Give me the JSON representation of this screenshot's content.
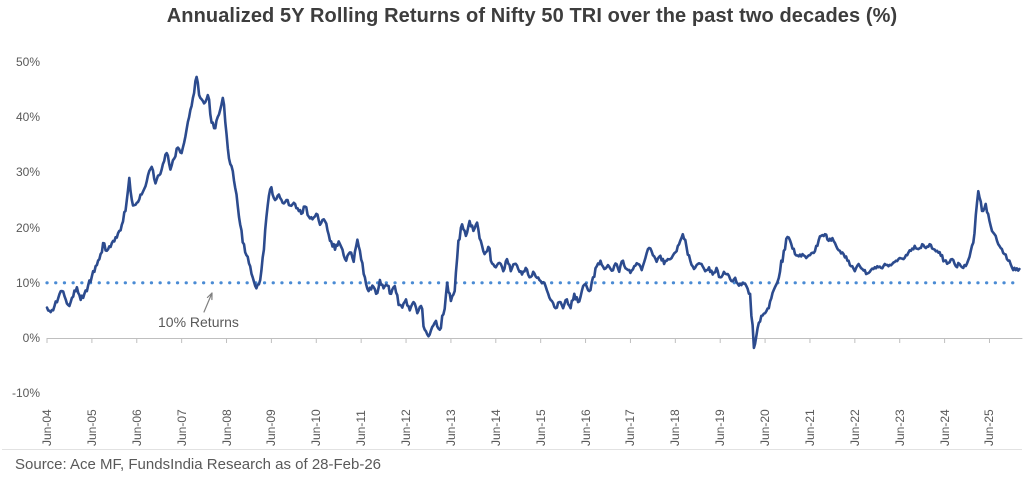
{
  "title": "Annualized 5Y Rolling Returns of Nifty 50 TRI over the past two decades (%)",
  "source_note": "Source: Ace MF, FundsIndia Research as of 28-Feb-26",
  "annotation": {
    "label": "10% Returns",
    "points_to": "10% dotted reference line"
  },
  "colors": {
    "series_line": "#2c4b8e",
    "reference_dotted": "#4a8bd4",
    "axis": "#bfbfbf",
    "label_text": "#595959",
    "title_text": "#3d3d3d",
    "divider": "#e2e2e2"
  },
  "chart_data": {
    "type": "line",
    "title": "Annualized 5Y Rolling Returns of Nifty 50 TRI over the past two decades (%)",
    "unit": "%",
    "xlabel": "",
    "ylabel": "",
    "ylim": [
      -10,
      50
    ],
    "grid": "none",
    "legend": "none",
    "y_tick_labels": [
      "50%",
      "40%",
      "30%",
      "20%",
      "10%",
      "0%",
      "-10%"
    ],
    "x_tick_labels": [
      "Jun-04",
      "Jun-05",
      "Jun-06",
      "Jun-07",
      "Jun-08",
      "Jun-09",
      "Jun-10",
      "Jun-11",
      "Jun-12",
      "Jun-13",
      "Jun-14",
      "Jun-15",
      "Jun-16",
      "Jun-17",
      "Jun-18",
      "Jun-19",
      "Jun-20",
      "Jun-21",
      "Jun-22",
      "Jun-23",
      "Jun-24",
      "Jun-25"
    ],
    "x_tick_interval_months": 12,
    "reference_line": {
      "value": 10,
      "style": "dotted",
      "label": "10% Returns"
    },
    "series": [
      {
        "name": "Nifty 50 TRI 5Y Rolling Return (%)",
        "start": "Jun-04",
        "end": "Feb-26",
        "frequency": "monthly",
        "values": [
          5.5,
          4.7,
          5.8,
          7.2,
          8.5,
          7.0,
          5.8,
          7.5,
          9.2,
          6.9,
          8.0,
          9.5,
          11.2,
          13.0,
          14.3,
          17.2,
          15.8,
          16.5,
          17.5,
          19.0,
          20.5,
          23.0,
          29.0,
          24.0,
          24.5,
          26.0,
          27.0,
          29.5,
          31.0,
          28.0,
          29.5,
          31.5,
          33.5,
          30.5,
          32.5,
          34.5,
          33.5,
          36.5,
          40.0,
          43.5,
          47.3,
          43.5,
          42.5,
          44.0,
          39.0,
          38.0,
          40.5,
          43.5,
          37.0,
          31.5,
          28.5,
          24.0,
          19.5,
          15.5,
          13.5,
          11.0,
          9.0,
          10.5,
          16.0,
          24.0,
          27.3,
          25.0,
          26.0,
          24.5,
          25.0,
          24.0,
          24.5,
          23.5,
          22.5,
          23.8,
          22.0,
          21.5,
          22.5,
          20.5,
          21.5,
          19.5,
          17.5,
          16.0,
          17.5,
          16.0,
          14.0,
          15.5,
          13.8,
          17.8,
          14.2,
          11.0,
          8.5,
          9.5,
          8.0,
          10.5,
          9.0,
          9.5,
          8.0,
          9.4,
          6.0,
          5.5,
          7.0,
          5.0,
          6.5,
          4.5,
          5.8,
          1.5,
          0.3,
          2.0,
          3.1,
          1.5,
          4.3,
          10.0,
          6.7,
          8.5,
          17.6,
          20.6,
          18.5,
          21.2,
          19.4,
          20.9,
          17.6,
          15.2,
          16.5,
          13.5,
          12.8,
          13.6,
          12.1,
          14.3,
          12.1,
          13.4,
          12.5,
          11.5,
          12.7,
          11.0,
          12.0,
          10.9,
          10.3,
          10.0,
          8.0,
          6.7,
          5.4,
          6.5,
          5.4,
          7.0,
          5.4,
          8.0,
          6.5,
          8.5,
          9.8,
          8.5,
          11.0,
          13.0,
          14.0,
          12.5,
          13.2,
          12.2,
          13.5,
          12.0,
          14.0,
          12.5,
          11.8,
          13.0,
          13.4,
          12.3,
          14.5,
          16.3,
          15.0,
          13.8,
          14.9,
          13.4,
          14.3,
          14.5,
          15.5,
          17.0,
          18.8,
          16.5,
          14.0,
          12.5,
          13.4,
          13.4,
          12.1,
          12.8,
          11.5,
          12.7,
          11.0,
          12.0,
          11.6,
          10.3,
          10.9,
          9.5,
          10.0,
          9.4,
          8.0,
          -1.8,
          1.8,
          4.0,
          4.5,
          5.4,
          8.2,
          9.7,
          12.0,
          15.8,
          18.3,
          17.0,
          15.2,
          14.8,
          15.2,
          14.5,
          15.0,
          15.4,
          16.7,
          18.5,
          18.8,
          17.6,
          18.1,
          16.7,
          15.8,
          15.2,
          14.0,
          13.0,
          12.1,
          13.4,
          12.5,
          11.6,
          12.0,
          12.5,
          13.0,
          12.7,
          13.4,
          13.0,
          13.4,
          14.0,
          14.5,
          14.3,
          15.0,
          15.8,
          16.7,
          16.1,
          17.0,
          16.3,
          17.0,
          16.1,
          15.8,
          14.9,
          14.0,
          13.6,
          14.3,
          13.0,
          13.4,
          12.7,
          13.5,
          15.8,
          19.0,
          26.6,
          23.0,
          24.3,
          21.2,
          19.1,
          17.6,
          16.3,
          15.2,
          14.0,
          12.8,
          12.3,
          12.5
        ]
      }
    ]
  }
}
